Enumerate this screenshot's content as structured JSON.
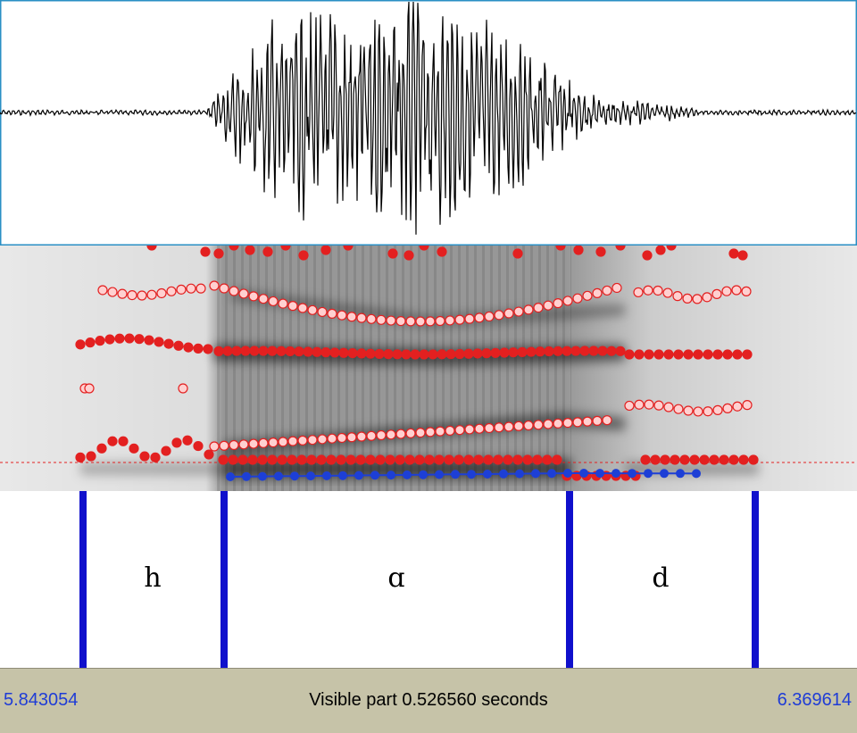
{
  "tier": {
    "segments": [
      {
        "label": "h"
      },
      {
        "label": "ɑ"
      },
      {
        "label": "d"
      }
    ]
  },
  "status": {
    "start_time": "5.843054",
    "visible_label": "Visible part 0.526560 seconds",
    "end_time": "6.369614"
  },
  "colors": {
    "formant_dot": "#e32020",
    "pitch_dot": "#1d3fd6",
    "boundary": "#1010cc",
    "waveform_frame": "#2a8fc4",
    "statusbar": "#c6c3a8"
  }
}
